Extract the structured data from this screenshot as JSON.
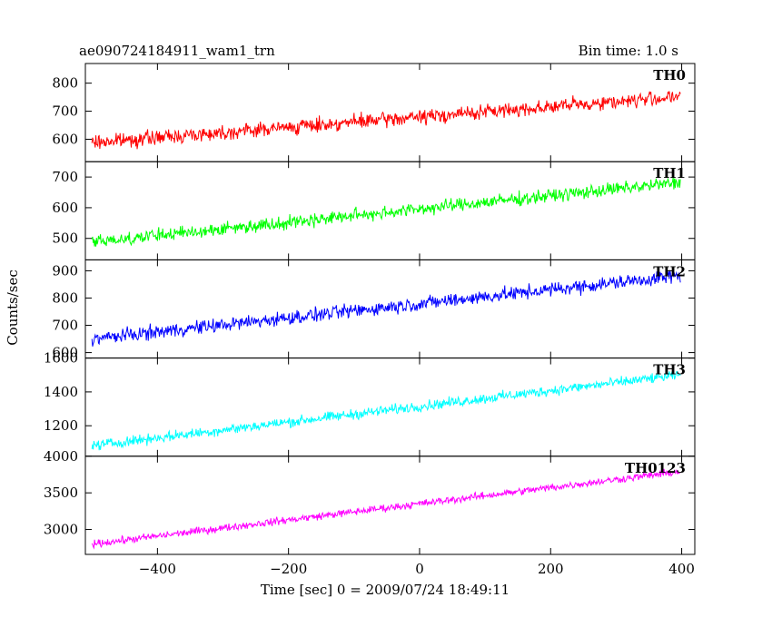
{
  "header": {
    "title": "ae090724184911_wam1_trn",
    "bin_time": "Bin time: 1.0 s"
  },
  "chart_data": {
    "type": "line",
    "xlabel": "Time [sec] 0 = 2009/07/24 18:49:11",
    "ylabel": "Counts/sec",
    "xlim": [
      -510,
      420
    ],
    "x_ticks": [
      -400,
      -200,
      0,
      200,
      400
    ],
    "x_tick_labels": [
      "−400",
      "−200",
      "0",
      "200",
      "400"
    ],
    "x_range_data": [
      -500,
      398
    ],
    "grid": false,
    "series": [
      {
        "name": "TH0",
        "color": "#ff0000",
        "ylim": [
          520,
          870
        ],
        "y_ticks": [
          600,
          700,
          800
        ],
        "y_tick_labels": [
          "600",
          "700",
          "800"
        ],
        "trend_start": 588,
        "trend_end": 752,
        "noise_amplitude": 38
      },
      {
        "name": "TH1",
        "color": "#00ff00",
        "ylim": [
          430,
          750
        ],
        "y_ticks": [
          500,
          600,
          700
        ],
        "y_tick_labels": [
          "500",
          "600",
          "700"
        ],
        "trend_start": 488,
        "trend_end": 682,
        "noise_amplitude": 32
      },
      {
        "name": "TH2",
        "color": "#0000ff",
        "ylim": [
          580,
          940
        ],
        "y_ticks": [
          600,
          700,
          800,
          900
        ],
        "y_tick_labels": [
          "600",
          "700",
          "800",
          "900"
        ],
        "trend_start": 650,
        "trend_end": 882,
        "noise_amplitude": 38
      },
      {
        "name": "TH3",
        "color": "#00ffff",
        "ylim": [
          1020,
          1600
        ],
        "y_ticks": [
          1200,
          1400,
          1600
        ],
        "y_tick_labels": [
          "1200",
          "1400",
          "1600"
        ],
        "trend_start": 1082,
        "trend_end": 1500,
        "noise_amplitude": 45
      },
      {
        "name": "TH0123",
        "color": "#ff00ff",
        "ylim": [
          2660,
          4000
        ],
        "y_ticks": [
          3000,
          3500,
          4000
        ],
        "y_tick_labels": [
          "3000",
          "3500",
          "4000"
        ],
        "trend_start": 2800,
        "trend_end": 3790,
        "noise_amplitude": 75
      }
    ]
  }
}
